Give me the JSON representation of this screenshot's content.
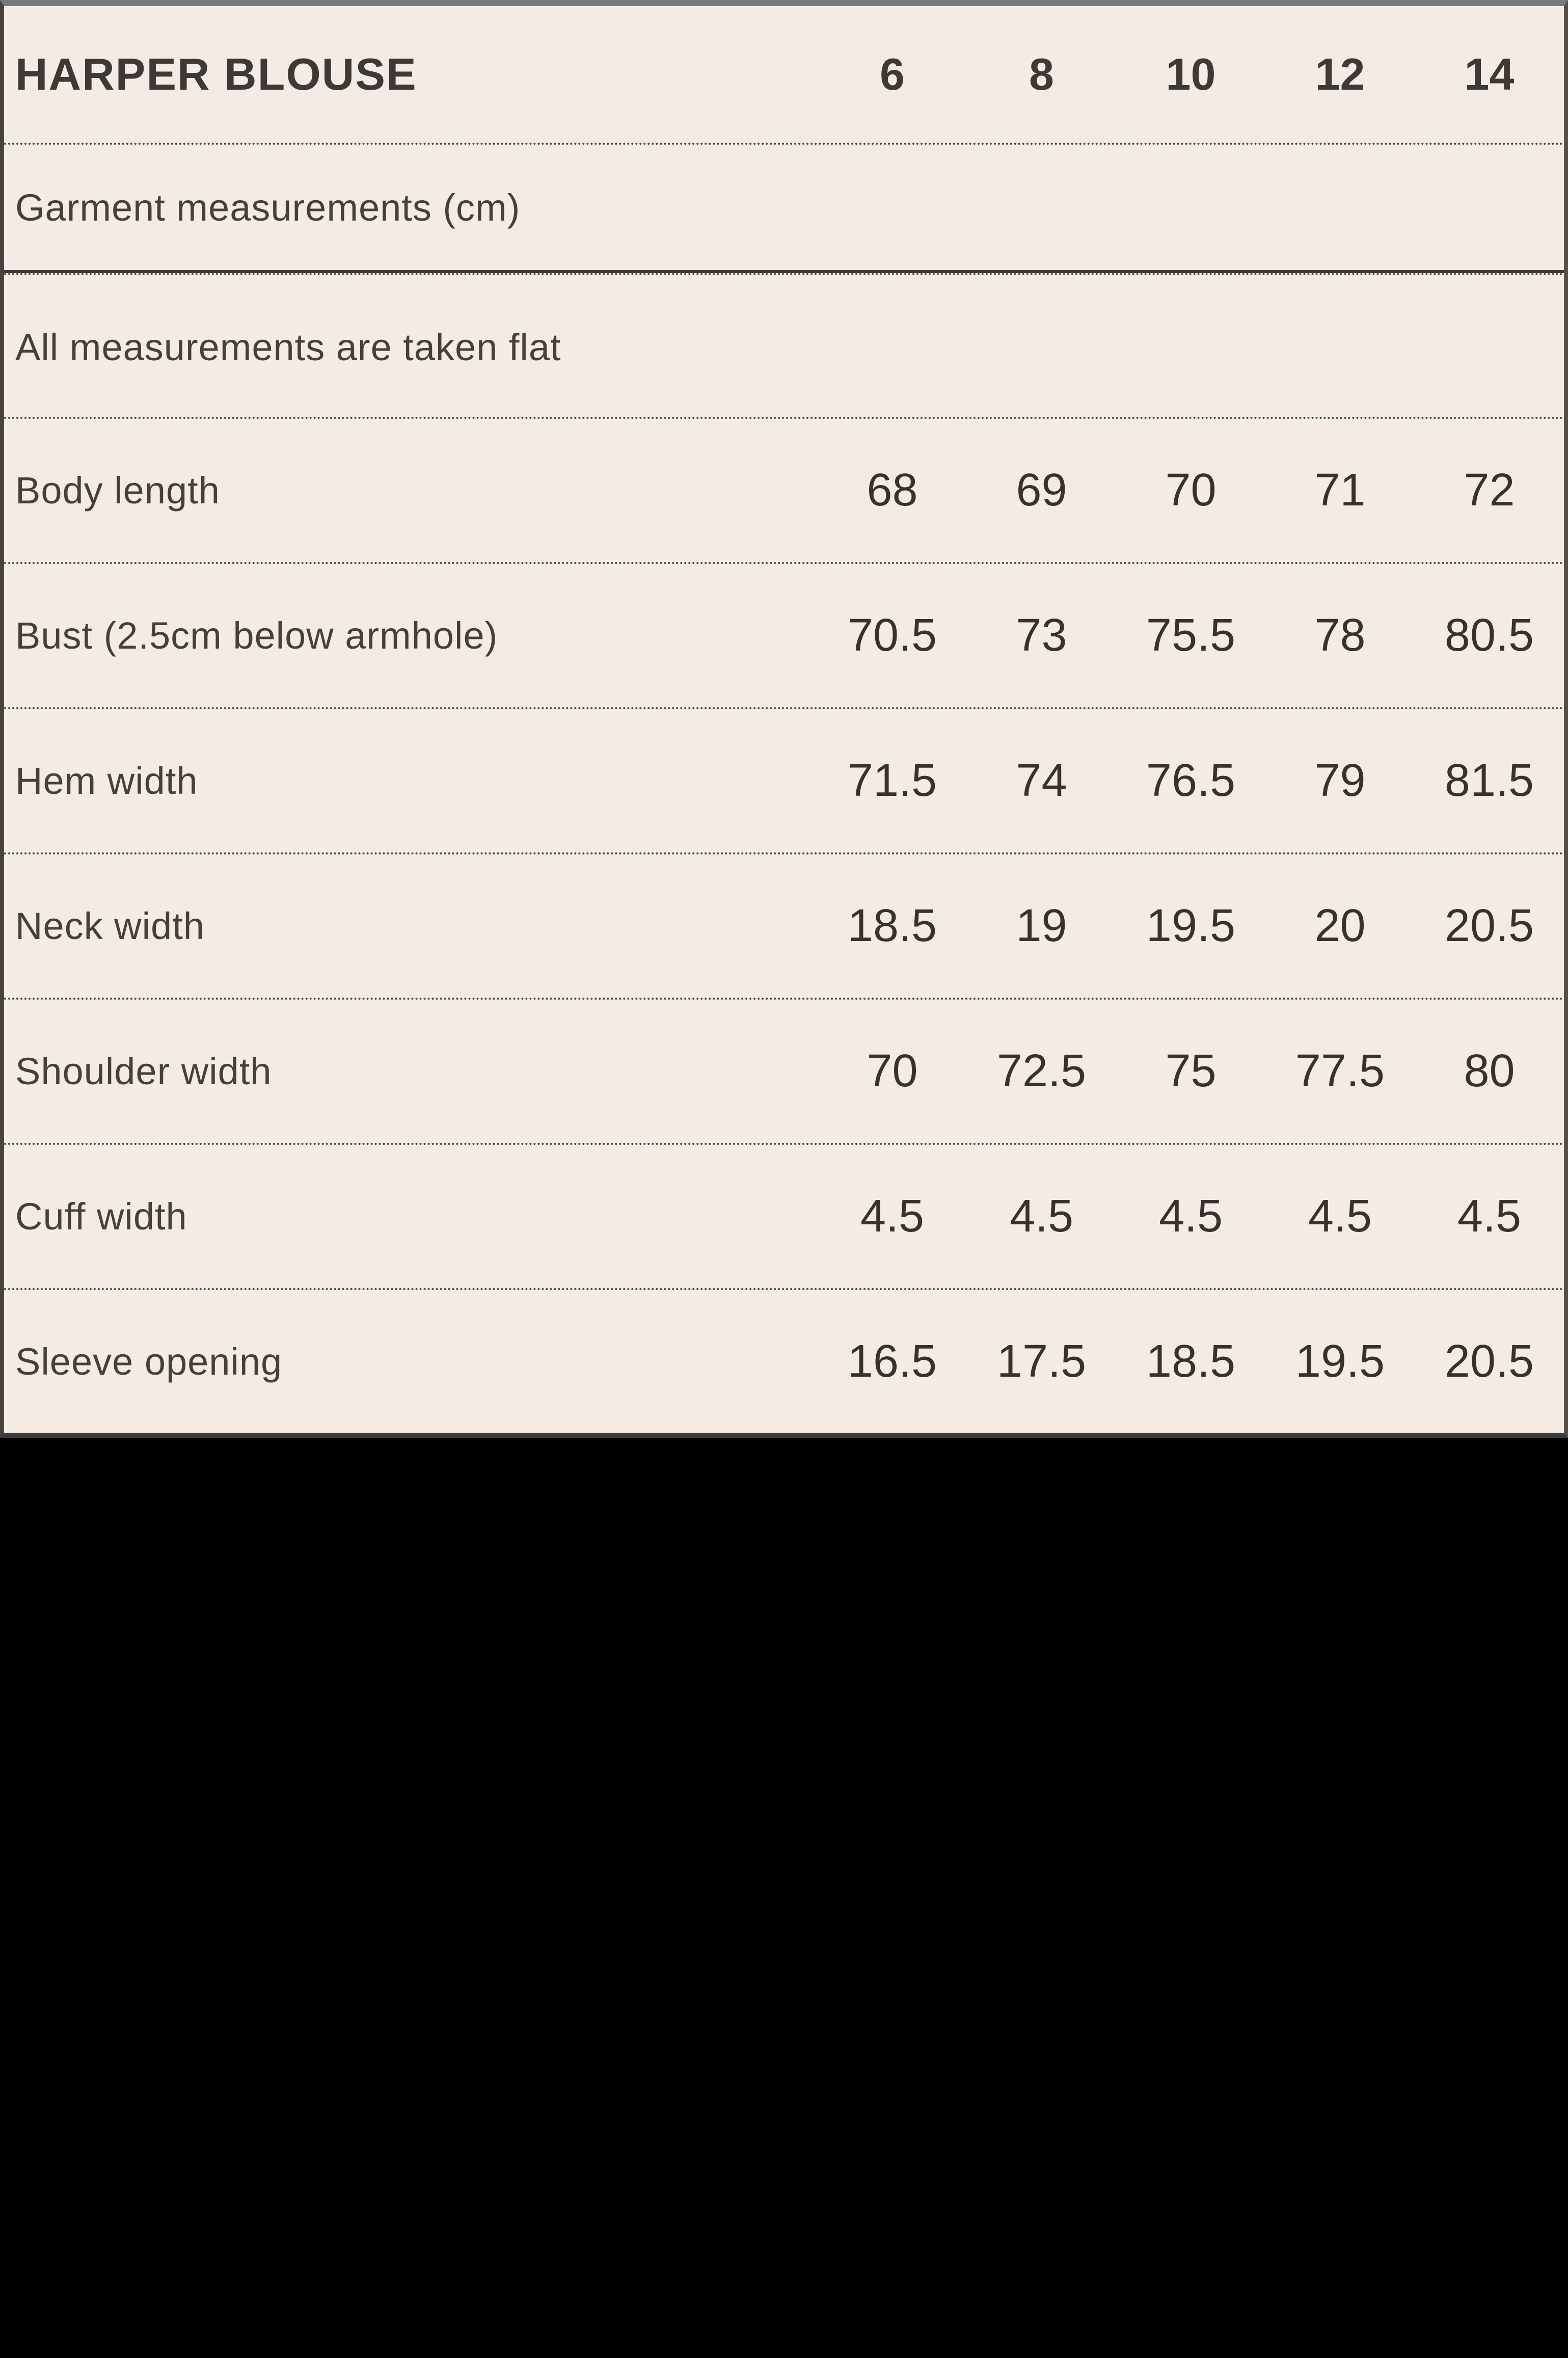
{
  "chart_data": {
    "type": "table",
    "title": "HARPER BLOUSE",
    "columns": [
      "6",
      "8",
      "10",
      "12",
      "14"
    ],
    "notes": [
      "Garment measurements (cm)",
      "All measurements are taken flat"
    ],
    "rows": [
      {
        "label": "Body length",
        "values": [
          "68",
          "69",
          "70",
          "71",
          "72"
        ]
      },
      {
        "label": "Bust (2.5cm below armhole)",
        "values": [
          "70.5",
          "73",
          "75.5",
          "78",
          "80.5"
        ]
      },
      {
        "label": "Hem width",
        "values": [
          "71.5",
          "74",
          "76.5",
          "79",
          "81.5"
        ]
      },
      {
        "label": "Neck width",
        "values": [
          "18.5",
          "19",
          "19.5",
          "20",
          "20.5"
        ]
      },
      {
        "label": "Shoulder width",
        "values": [
          "70",
          "72.5",
          "75",
          "77.5",
          "80"
        ]
      },
      {
        "label": "Cuff width",
        "values": [
          "4.5",
          "4.5",
          "4.5",
          "4.5",
          "4.5"
        ]
      },
      {
        "label": "Sleeve opening",
        "values": [
          "16.5",
          "17.5",
          "18.5",
          "19.5",
          "20.5"
        ]
      }
    ],
    "layout_hints": {
      "grid": "dotted row separators",
      "section_break": "solid line below first note row",
      "value_alignment": "centered columns, right side of table"
    },
    "colors": {
      "table_background": "#f4ece4",
      "text": "#3d3936",
      "top_border": "#7a7a7a",
      "frame_border": "#474341",
      "page_background": "#000000"
    }
  }
}
